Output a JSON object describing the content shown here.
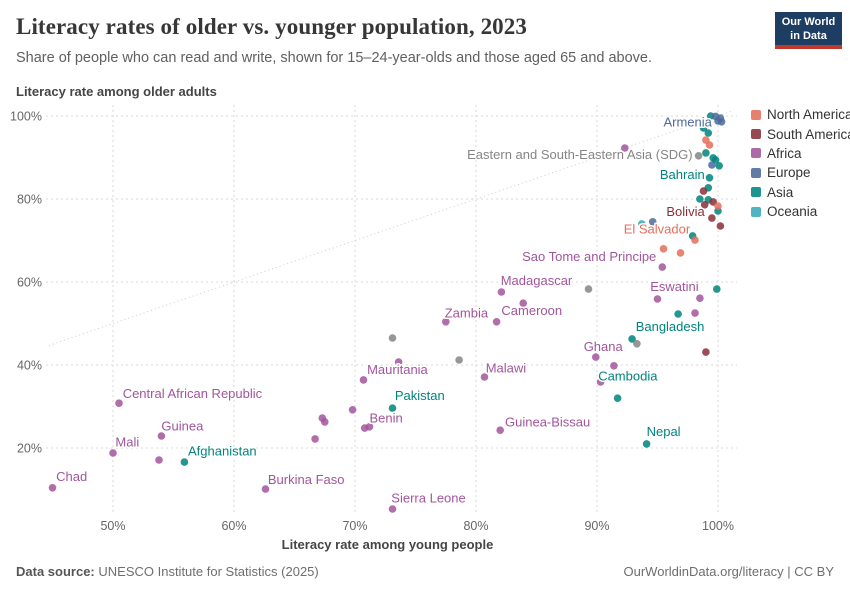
{
  "header": {
    "title": "Literacy rates of older vs. younger population, 2023",
    "subtitle": "Share of people who can read and write, shown for 15–24-year-olds and those aged 65 and above."
  },
  "logo": {
    "line1": "Our World",
    "line2": "in Data",
    "bg_color": "#1d3d63",
    "bar_color": "#c0392b"
  },
  "legend": {
    "items": [
      {
        "label": "North America",
        "color": "#e56e5a"
      },
      {
        "label": "South America",
        "color": "#883039"
      },
      {
        "label": "Africa",
        "color": "#a2559c"
      },
      {
        "label": "Europe",
        "color": "#4c6a9c"
      },
      {
        "label": "Asia",
        "color": "#00847e"
      },
      {
        "label": "Oceania",
        "color": "#38aaba"
      }
    ]
  },
  "footer": {
    "source_label": "Data source:",
    "source_text": "UNESCO Institute for Statistics (2025)",
    "right_text": "OurWorldinData.org/literacy | CC BY"
  },
  "chart_data": {
    "type": "scatter",
    "title": "Literacy rates of older vs. younger population, 2023",
    "xlabel": "Literacy rate among young people",
    "ylabel": "Literacy rate among older adults",
    "xlim": [
      44.5,
      101.5
    ],
    "ylim": [
      4.5,
      102
    ],
    "x_ticks": [
      50,
      60,
      70,
      80,
      90,
      100
    ],
    "y_ticks": [
      20,
      40,
      60,
      80,
      100
    ],
    "tick_suffix": "%",
    "grid": true,
    "diagonal_reference_line": {
      "from": [
        44.7,
        44.7
      ],
      "to": [
        101.3,
        101.3
      ]
    },
    "legend_position": "right",
    "region_colors": {
      "Africa": "#a2559c",
      "Asia": "#00847e",
      "Europe": "#4c6a9c",
      "North America": "#e56e5a",
      "South America": "#883039",
      "Oceania": "#38aaba",
      "Aggregate": "#858585"
    },
    "points": [
      {
        "x": 45.0,
        "y": 10.4,
        "region": "Africa",
        "label": "Chad",
        "lx": 45.3,
        "ly": 13.0
      },
      {
        "x": 50.0,
        "y": 18.8,
        "region": "Africa",
        "label": "Mali",
        "lx": 50.2,
        "ly": 21.3
      },
      {
        "x": 50.5,
        "y": 30.8,
        "region": "Africa",
        "label": "Central African Republic",
        "lx": 50.8,
        "ly": 33.0
      },
      {
        "x": 54.0,
        "y": 22.9,
        "region": "Africa",
        "label": "Guinea",
        "lx": 54.0,
        "ly": 25.2
      },
      {
        "x": 53.8,
        "y": 17.1,
        "region": "Africa"
      },
      {
        "x": 62.6,
        "y": 10.1,
        "region": "Africa",
        "label": "Burkina Faso",
        "lx": 62.8,
        "ly": 12.3
      },
      {
        "x": 66.7,
        "y": 22.2,
        "region": "Africa"
      },
      {
        "x": 67.3,
        "y": 27.2,
        "region": "Africa"
      },
      {
        "x": 67.5,
        "y": 26.3,
        "region": "Africa"
      },
      {
        "x": 69.8,
        "y": 29.2,
        "region": "Africa"
      },
      {
        "x": 70.8,
        "y": 24.8,
        "region": "Africa",
        "label": "Benin",
        "lx": 71.2,
        "ly": 27.1
      },
      {
        "x": 71.2,
        "y": 25.1,
        "region": "Africa"
      },
      {
        "x": 70.7,
        "y": 36.4,
        "region": "Africa",
        "label": "Mauritania",
        "lx": 71.0,
        "ly": 38.8
      },
      {
        "x": 73.6,
        "y": 40.7,
        "region": "Africa"
      },
      {
        "x": 73.1,
        "y": 5.3,
        "region": "Africa",
        "label": "Sierra Leone",
        "lx": 73.0,
        "ly": 7.8
      },
      {
        "x": 77.5,
        "y": 50.4,
        "region": "Africa",
        "label": "Zambia",
        "lx": 81.0,
        "ly": 52.4,
        "anchor": "end"
      },
      {
        "x": 80.7,
        "y": 37.1,
        "region": "Africa",
        "label": "Malawi",
        "lx": 80.8,
        "ly": 39.2
      },
      {
        "x": 82.0,
        "y": 24.3,
        "region": "Africa",
        "label": "Guinea-Bissau",
        "lx": 82.4,
        "ly": 26.2
      },
      {
        "x": 82.1,
        "y": 57.6,
        "region": "Africa",
        "label": "Madagascar",
        "lx": 85.0,
        "ly": 60.3,
        "anchor": "middle"
      },
      {
        "x": 81.7,
        "y": 50.4,
        "region": "Africa",
        "label": "Cameroon",
        "lx": 82.1,
        "ly": 53.0
      },
      {
        "x": 83.9,
        "y": 54.9,
        "region": "Africa"
      },
      {
        "x": 89.9,
        "y": 41.9,
        "region": "Africa"
      },
      {
        "x": 91.4,
        "y": 39.8,
        "region": "Africa",
        "label": "Ghana",
        "lx": 88.9,
        "ly": 44.3
      },
      {
        "x": 90.3,
        "y": 35.9,
        "region": "Africa"
      },
      {
        "x": 95.0,
        "y": 55.9,
        "region": "Africa",
        "label": "Eswatini",
        "lx": 96.4,
        "ly": 58.8,
        "anchor": "middle"
      },
      {
        "x": 98.5,
        "y": 56.1,
        "region": "Africa"
      },
      {
        "x": 98.1,
        "y": 52.5,
        "region": "Africa"
      },
      {
        "x": 95.4,
        "y": 63.6,
        "region": "Africa",
        "label": "Sao Tome and Principe",
        "lx": 94.9,
        "ly": 66.0,
        "anchor": "end"
      },
      {
        "x": 92.3,
        "y": 92.3,
        "region": "Africa"
      },
      {
        "x": 55.9,
        "y": 16.6,
        "region": "Asia",
        "label": "Afghanistan",
        "lx": 56.2,
        "ly": 19.2
      },
      {
        "x": 73.1,
        "y": 29.6,
        "region": "Asia",
        "label": "Pakistan",
        "lx": 73.3,
        "ly": 32.5
      },
      {
        "x": 91.7,
        "y": 32.0,
        "region": "Asia",
        "label": "Cambodia",
        "lx": 90.1,
        "ly": 37.2
      },
      {
        "x": 92.9,
        "y": 46.3,
        "region": "Asia",
        "label": "Bangladesh",
        "lx": 93.2,
        "ly": 49.2
      },
      {
        "x": 94.1,
        "y": 21.0,
        "region": "Asia",
        "label": "Nepal",
        "lx": 94.1,
        "ly": 23.8
      },
      {
        "x": 99.9,
        "y": 58.3,
        "region": "Asia"
      },
      {
        "x": 96.7,
        "y": 52.3,
        "region": "Asia"
      },
      {
        "x": 97.9,
        "y": 71.1,
        "region": "Asia"
      },
      {
        "x": 99.3,
        "y": 85.1,
        "region": "Asia",
        "label": "Bahrain",
        "lx": 98.9,
        "ly": 85.8,
        "anchor": "end"
      },
      {
        "x": 99.2,
        "y": 82.7,
        "region": "Asia"
      },
      {
        "x": 98.5,
        "y": 80.0,
        "region": "Asia"
      },
      {
        "x": 99.2,
        "y": 79.8,
        "region": "Asia"
      },
      {
        "x": 100.0,
        "y": 77.1,
        "region": "Asia"
      },
      {
        "x": 99.0,
        "y": 91.1,
        "region": "Asia"
      },
      {
        "x": 99.6,
        "y": 89.9,
        "region": "Asia"
      },
      {
        "x": 99.8,
        "y": 89.4,
        "region": "Asia"
      },
      {
        "x": 100.1,
        "y": 88.0,
        "region": "Asia"
      },
      {
        "x": 98.8,
        "y": 97.1,
        "region": "Asia"
      },
      {
        "x": 99.2,
        "y": 95.9,
        "region": "Asia"
      },
      {
        "x": 99.4,
        "y": 100.0,
        "region": "Asia"
      },
      {
        "x": 99.5,
        "y": 75.4,
        "region": "South America",
        "label": "Bolivia",
        "lx": 98.9,
        "ly": 76.9,
        "anchor": "end"
      },
      {
        "x": 100.2,
        "y": 73.5,
        "region": "South America"
      },
      {
        "x": 98.8,
        "y": 81.9,
        "region": "South America"
      },
      {
        "x": 99.6,
        "y": 79.3,
        "region": "South America"
      },
      {
        "x": 98.9,
        "y": 78.6,
        "region": "South America"
      },
      {
        "x": 99.0,
        "y": 43.1,
        "region": "South America"
      },
      {
        "x": 98.1,
        "y": 70.1,
        "region": "North America",
        "label": "El Salvador",
        "lx": 97.7,
        "ly": 72.7,
        "anchor": "end"
      },
      {
        "x": 95.5,
        "y": 68.0,
        "region": "North America"
      },
      {
        "x": 96.9,
        "y": 67.0,
        "region": "North America"
      },
      {
        "x": 98.6,
        "y": 85.8,
        "region": "North America"
      },
      {
        "x": 100.0,
        "y": 78.3,
        "region": "North America"
      },
      {
        "x": 99.0,
        "y": 94.2,
        "region": "North America"
      },
      {
        "x": 99.3,
        "y": 93.0,
        "region": "North America"
      },
      {
        "x": 94.6,
        "y": 74.5,
        "region": "Europe"
      },
      {
        "x": 99.5,
        "y": 88.2,
        "region": "Europe"
      },
      {
        "x": 99.8,
        "y": 99.9,
        "region": "Europe",
        "label": "Armenia",
        "lx": 99.5,
        "ly": 98.4,
        "anchor": "end"
      },
      {
        "x": 100.2,
        "y": 99.5,
        "region": "Europe"
      },
      {
        "x": 100.0,
        "y": 98.8,
        "region": "Europe"
      },
      {
        "x": 100.3,
        "y": 98.6,
        "region": "Europe"
      },
      {
        "x": 93.7,
        "y": 74.0,
        "region": "Oceania"
      },
      {
        "x": 98.4,
        "y": 90.4,
        "region": "Aggregate",
        "label": "Eastern and South-Eastern Asia (SDG)",
        "lx": 97.9,
        "ly": 90.6,
        "anchor": "end"
      },
      {
        "x": 89.3,
        "y": 58.3,
        "region": "Aggregate"
      },
      {
        "x": 93.3,
        "y": 45.1,
        "region": "Aggregate"
      },
      {
        "x": 78.6,
        "y": 41.2,
        "region": "Aggregate"
      },
      {
        "x": 73.1,
        "y": 46.5,
        "region": "Aggregate"
      }
    ]
  }
}
